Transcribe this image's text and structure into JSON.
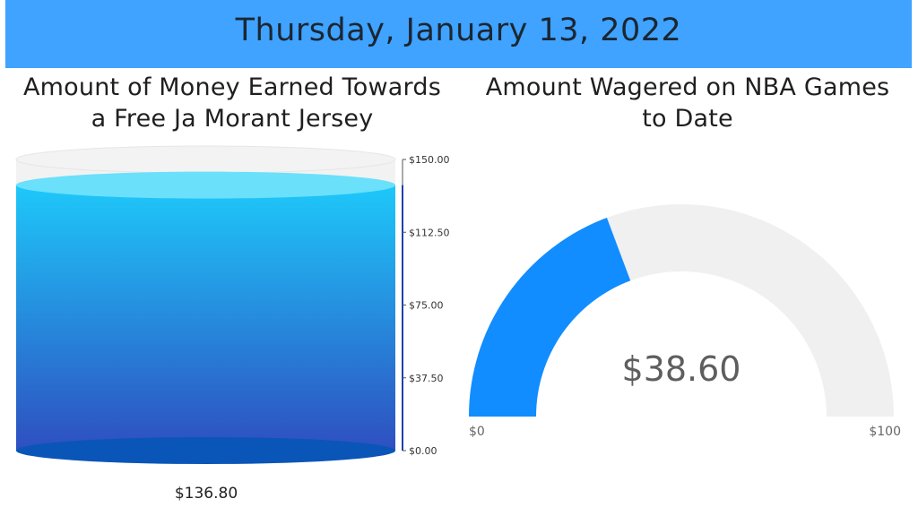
{
  "header": {
    "date": "Thursday, January 13, 2022"
  },
  "colors": {
    "banner": "#3fa3ff",
    "tank_fill_top": "#1ec8fa",
    "tank_fill_bottom": "#2e4fc0",
    "tank_track": "#f2f2f2",
    "gauge_fill": "#118dff",
    "gauge_track": "#f1f0f0"
  },
  "chart_data": [
    {
      "type": "tank",
      "title": "Amount of Money Earned Towards a Free Ja Morant Jersey",
      "title_lines": [
        "Amount of Money Earned Towards",
        "a Free Ja Morant Jersey"
      ],
      "value": 136.8,
      "value_label": "$136.80",
      "ylim": [
        0,
        150
      ],
      "ticks": [
        {
          "value": 150,
          "label": "$150.00"
        },
        {
          "value": 112.5,
          "label": "$112.50"
        },
        {
          "value": 75,
          "label": "$75.00"
        },
        {
          "value": 37.5,
          "label": "$37.50"
        },
        {
          "value": 0,
          "label": "$0.00"
        }
      ]
    },
    {
      "type": "gauge",
      "title": "Amount Wagered on NBA Games to Date",
      "title_lines": [
        "Amount Wagered on NBA Games",
        "to Date"
      ],
      "value": 38.6,
      "value_label": "$38.60",
      "min": 0,
      "max": 100,
      "min_label": "$0",
      "max_label": "$100"
    }
  ]
}
